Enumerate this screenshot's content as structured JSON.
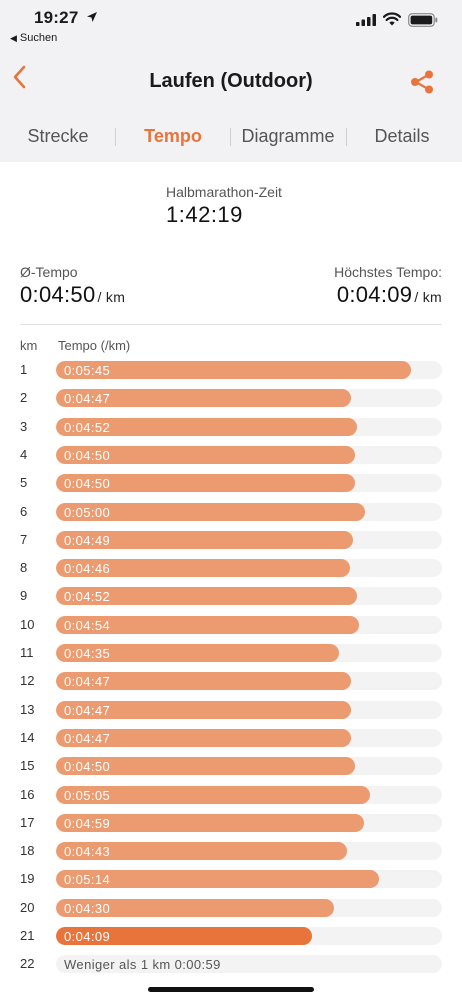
{
  "status_bar": {
    "time": "19:27",
    "back_app": "Suchen"
  },
  "nav": {
    "title": "Laufen (Outdoor)"
  },
  "tabs": [
    {
      "label": "Strecke"
    },
    {
      "label": "Tempo"
    },
    {
      "label": "Diagramme"
    },
    {
      "label": "Details"
    }
  ],
  "summary": {
    "halfmarathon_label": "Halbmarathon-Zeit",
    "halfmarathon_value": "1:42:19",
    "avg_label": "Ø-Tempo",
    "avg_value": "0:04:50",
    "avg_unit": "/ km",
    "max_label": "Höchstes Tempo:",
    "max_value": "0:04:09",
    "max_unit": "/ km"
  },
  "table": {
    "col_km": "km",
    "col_tempo": "Tempo (/km)"
  },
  "chart_data": {
    "type": "bar",
    "orientation": "horizontal",
    "xlabel": "Tempo (/km)",
    "ylabel": "km",
    "categories": [
      "1",
      "2",
      "3",
      "4",
      "5",
      "6",
      "7",
      "8",
      "9",
      "10",
      "11",
      "12",
      "13",
      "14",
      "15",
      "16",
      "17",
      "18",
      "19",
      "20",
      "21",
      "22"
    ],
    "labels": [
      "0:05:45",
      "0:04:47",
      "0:04:52",
      "0:04:50",
      "0:04:50",
      "0:05:00",
      "0:04:49",
      "0:04:46",
      "0:04:52",
      "0:04:54",
      "0:04:35",
      "0:04:47",
      "0:04:47",
      "0:04:47",
      "0:04:50",
      "0:05:05",
      "0:04:59",
      "0:04:43",
      "0:05:14",
      "0:04:30",
      "0:04:09",
      "Weniger als 1 km 0:00:59"
    ],
    "values_seconds": [
      345,
      287,
      292,
      290,
      290,
      300,
      289,
      286,
      292,
      294,
      275,
      287,
      287,
      287,
      290,
      305,
      299,
      283,
      314,
      270,
      249,
      59
    ],
    "highlight_index": 20,
    "colors": {
      "bar": "#ec9a6f",
      "highlight": "#e8743b",
      "track": "#f3f3f4"
    }
  },
  "colors": {
    "accent": "#e8743b"
  }
}
